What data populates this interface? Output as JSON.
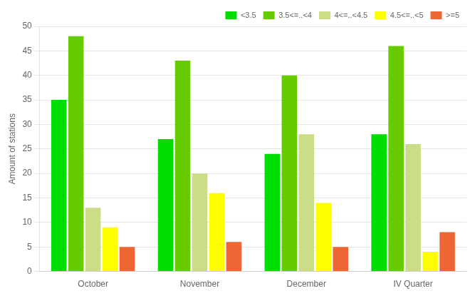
{
  "chart_data": {
    "type": "bar",
    "categories": [
      "October",
      "November",
      "December",
      "IV Quarter"
    ],
    "series": [
      {
        "name": "<3.5",
        "color": "#00dd00",
        "values": [
          35,
          27,
          24,
          28
        ]
      },
      {
        "name": "3.5<=..<4",
        "color": "#66cc00",
        "values": [
          48,
          43,
          40,
          46
        ]
      },
      {
        "name": "4<=..<4.5",
        "color": "#ccdd88",
        "values": [
          13,
          20,
          28,
          26
        ]
      },
      {
        "name": "4.5<=..<5",
        "color": "#ffff00",
        "values": [
          9,
          16,
          14,
          4
        ]
      },
      {
        "name": ">=5",
        "color": "#ee6633",
        "values": [
          5,
          6,
          5,
          8
        ]
      }
    ],
    "ylabel": "Amount of stations",
    "ylim": [
      0,
      50
    ],
    "yticks": [
      0,
      5,
      10,
      15,
      20,
      25,
      30,
      35,
      40,
      45,
      50
    ],
    "grid": true,
    "legend": "upper right"
  }
}
